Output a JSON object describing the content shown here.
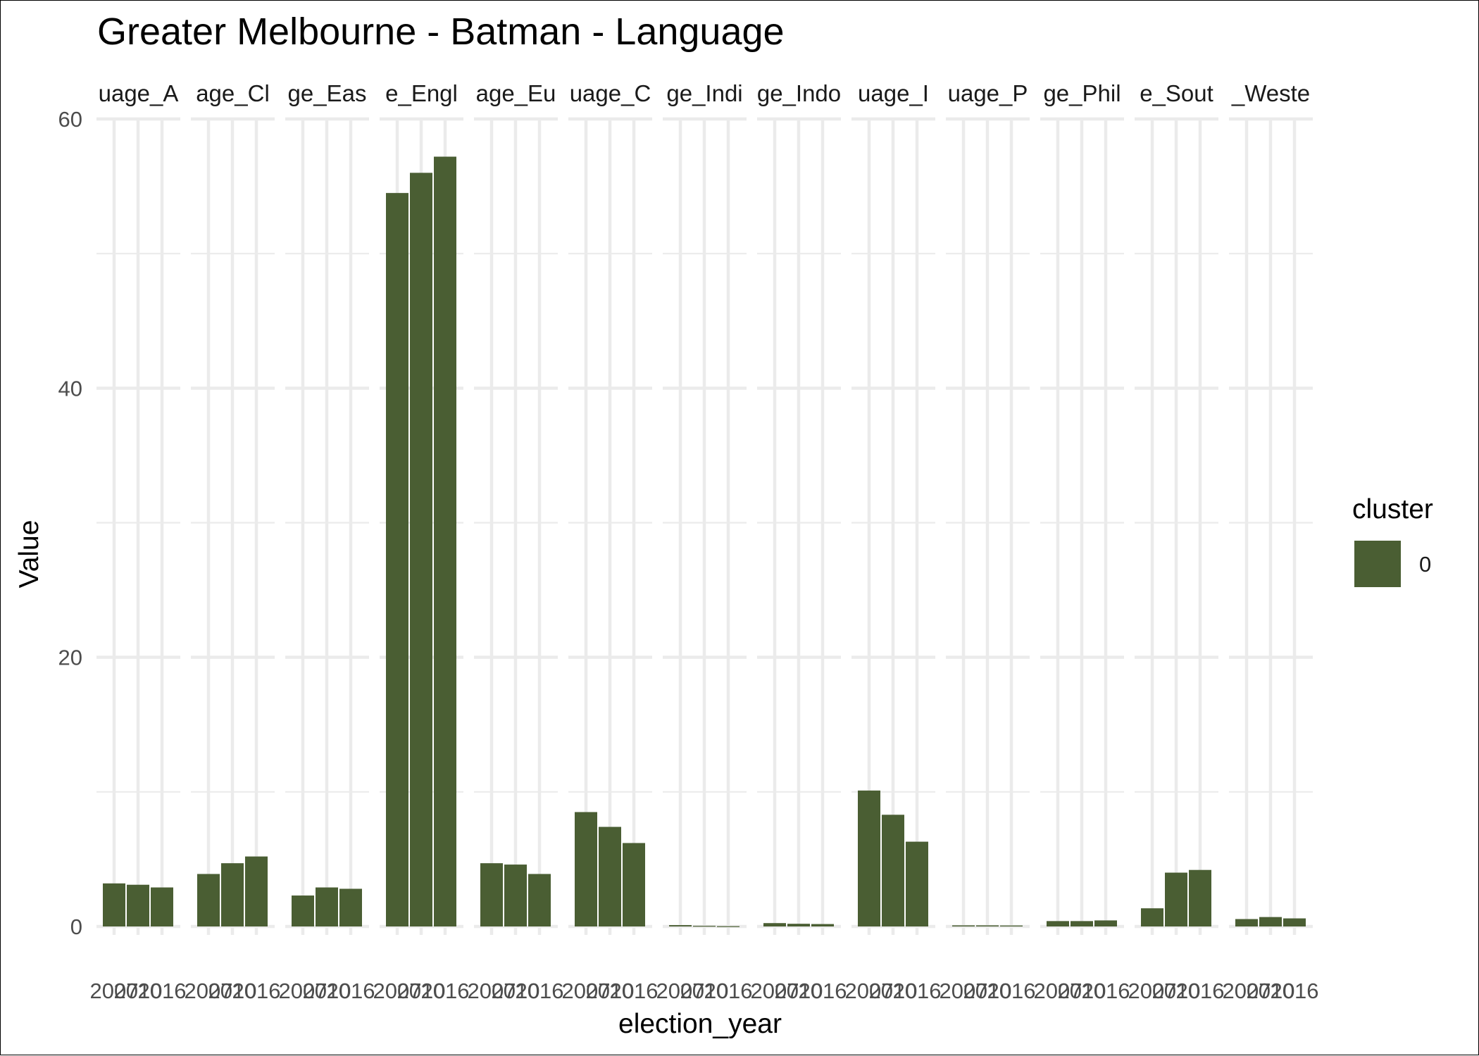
{
  "chart_data": {
    "type": "bar",
    "title": "Greater Melbourne - Batman - Language",
    "xlabel": "election_year",
    "ylabel": "Value",
    "ylim": [
      0,
      60
    ],
    "yticks": [
      0,
      20,
      40,
      60
    ],
    "grid": true,
    "legend": {
      "title": "cluster",
      "entries": [
        "0"
      ],
      "placement": "right"
    },
    "colors": {
      "bar": "#4a5e33",
      "grid": "#ebebeb"
    },
    "categories": [
      "2007",
      "2010",
      "2016"
    ],
    "x_tick_labels": [
      "2007",
      "2010",
      "2016"
    ],
    "facet_labels": [
      "uage_A",
      "age_Cl",
      "ge_Eas",
      "e_Engl",
      "age_Eu",
      "uage_C",
      "ge_Indi",
      "ge_Indo",
      "uage_I",
      "uage_P",
      "ge_Phil",
      "e_Sout",
      "_Weste"
    ],
    "facets": [
      {
        "label": "uage_A",
        "values": [
          3.2,
          3.1,
          2.9
        ]
      },
      {
        "label": "age_Cl",
        "values": [
          3.9,
          4.7,
          5.2
        ]
      },
      {
        "label": "ge_Eas",
        "values": [
          2.3,
          2.9,
          2.8
        ]
      },
      {
        "label": "e_Engl",
        "values": [
          54.5,
          56.0,
          57.2
        ]
      },
      {
        "label": "age_Eu",
        "values": [
          4.7,
          4.6,
          3.9
        ]
      },
      {
        "label": "uage_C",
        "values": [
          8.5,
          7.4,
          6.2
        ]
      },
      {
        "label": "ge_Indi",
        "values": [
          0.1,
          0.05,
          0.02
        ]
      },
      {
        "label": "ge_Indo",
        "values": [
          0.25,
          0.2,
          0.18
        ]
      },
      {
        "label": "uage_I",
        "values": [
          10.1,
          8.3,
          6.3
        ]
      },
      {
        "label": "uage_P",
        "values": [
          0.08,
          0.08,
          0.07
        ]
      },
      {
        "label": "ge_Phil",
        "values": [
          0.4,
          0.4,
          0.45
        ]
      },
      {
        "label": "e_Sout",
        "values": [
          1.35,
          4.0,
          4.2
        ]
      },
      {
        "label": "_Weste",
        "values": [
          0.55,
          0.7,
          0.6
        ]
      }
    ]
  }
}
